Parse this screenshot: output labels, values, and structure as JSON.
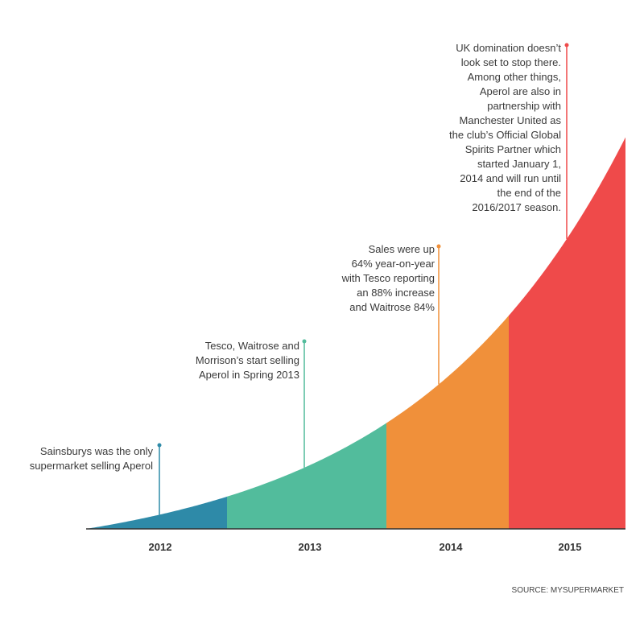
{
  "segments": [
    {
      "label": "2012",
      "color": "#2e8aa8"
    },
    {
      "label": "2013",
      "color": "#52bc9c"
    },
    {
      "label": "2014",
      "color": "#f0903a"
    },
    {
      "label": "2015",
      "color": "#ef4a4a"
    }
  ],
  "annotations": [
    {
      "lines": [
        "Sainsburys was the only",
        "supermarket selling Aperol"
      ]
    },
    {
      "lines": [
        "Tesco, Waitrose and",
        "Morrison’s start selling",
        "Aperol in Spring 2013"
      ]
    },
    {
      "lines": [
        "Sales were up",
        "64% year-on-year",
        "with Tesco reporting",
        "an 88% increase",
        "and Waitrose 84%"
      ]
    },
    {
      "lines": [
        "UK domination doesn’t",
        "look set to stop there.",
        "Among other things,",
        "Aperol are also in",
        "partnership with",
        "Manchester United as",
        "the club’s Official Global",
        "Spirits Partner which",
        "started January 1,",
        "2014 and will run until",
        "the end of the",
        "2016/2017 season."
      ]
    }
  ],
  "source": "SOURCE: MYSUPERMARKET"
}
